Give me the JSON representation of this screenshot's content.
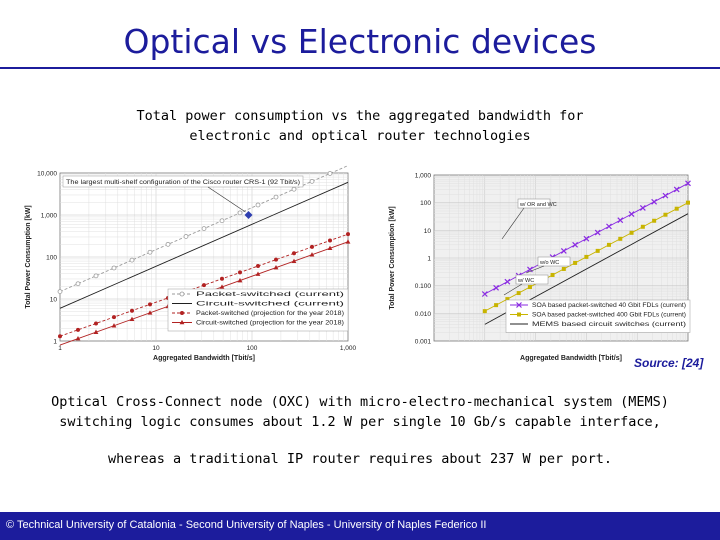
{
  "slide": {
    "title": "Optical vs Electronic devices",
    "subtitle_line1": "Total power consumption vs the aggregated bandwidth for",
    "subtitle_line2": "electronic and optical router technologies",
    "source": "Source: [24]",
    "body_line1": "Optical Cross-Connect node (OXC) with micro-electro-mechanical system (MEMS)",
    "body_line2": "switching logic consumes about 1.2 W per single 10 Gb/s capable interface,",
    "body_line3": "whereas a traditional IP router requires about 237 W per port.",
    "footer": "© Technical University of Catalonia - Second University of Naples - University of Naples Federico II",
    "colors": {
      "accent": "#1c1c9c",
      "footer_bg": "#1c1c9c"
    }
  },
  "chart_data": [
    {
      "type": "line",
      "log_x": true,
      "log_y": true,
      "xlabel": "Aggregated Bandwidth [Tbit/s]",
      "ylabel": "Total Power Consumption [kW]",
      "xlim": [
        1,
        1000
      ],
      "ylim": [
        1,
        10000
      ],
      "x_ticks": [
        "1",
        "10",
        "100",
        "1,000"
      ],
      "y_ticks": [
        "1",
        "10",
        "100",
        "1,000",
        "10,000"
      ],
      "annotation": "The largest multi-shelf configuration of the Cisco router CRS-1 (92 Tbit/s)",
      "annotation_point": {
        "x": 92,
        "y": 1000
      },
      "legend_position": "bottom-right",
      "series": [
        {
          "name": "Packet-switched (current)",
          "color": "#9a9a9a",
          "marker": "circle-open",
          "dashed": true,
          "x": [
            1,
            1000
          ],
          "y": [
            15,
            15000
          ]
        },
        {
          "name": "Circuit-switched (current)",
          "color": "#202020",
          "marker": "none",
          "dashed": false,
          "x": [
            1,
            1000
          ],
          "y": [
            6,
            6000
          ]
        },
        {
          "name": "Packet-switched (projection for the year 2018)",
          "color": "#b22222",
          "marker": "circle",
          "dashed": true,
          "x": [
            1,
            1000
          ],
          "y": [
            1.3,
            350
          ]
        },
        {
          "name": "Circuit-switched (projection for the year 2018)",
          "color": "#b22222",
          "marker": "triangle",
          "dashed": false,
          "x": [
            1,
            1000
          ],
          "y": [
            0.8,
            230
          ]
        }
      ]
    },
    {
      "type": "line",
      "log_x": true,
      "log_y": true,
      "xlabel": "Aggregated Bandwidth [Tbit/s]",
      "ylabel": "Total Power Consumption [kW]",
      "xlim": [
        0.01,
        1000
      ],
      "ylim": [
        0.001,
        1000
      ],
      "x_ticks": [
        "",
        "",
        "",
        "",
        "",
        "",
        "",
        "",
        "",
        "",
        "",
        "",
        "",
        "",
        ""
      ],
      "y_ticks": [
        "0.001",
        "0.010",
        "0.100",
        "1",
        "10",
        "100",
        "1,000"
      ],
      "annotations": [
        "w/ OR and WC",
        "w/ WC",
        "w/o WC"
      ],
      "legend_position": "bottom-right",
      "series": [
        {
          "name": "SOA based packet-switched 40 Gbit FDLs (current)",
          "color": "#8a2be2",
          "marker": "x",
          "dashed": false,
          "x": [
            0.1,
            1000
          ],
          "y": [
            0.05,
            500
          ]
        },
        {
          "name": "SOA based packet-switched 400 Gbit FDLs (current)",
          "color": "#c8b400",
          "marker": "square",
          "dashed": false,
          "x": [
            0.1,
            1000
          ],
          "y": [
            0.012,
            100
          ]
        },
        {
          "name": "MEMS based circuit switches (current)",
          "color": "#202020",
          "marker": "none",
          "dashed": false,
          "x": [
            0.1,
            1000
          ],
          "y": [
            0.004,
            40
          ]
        }
      ]
    }
  ]
}
